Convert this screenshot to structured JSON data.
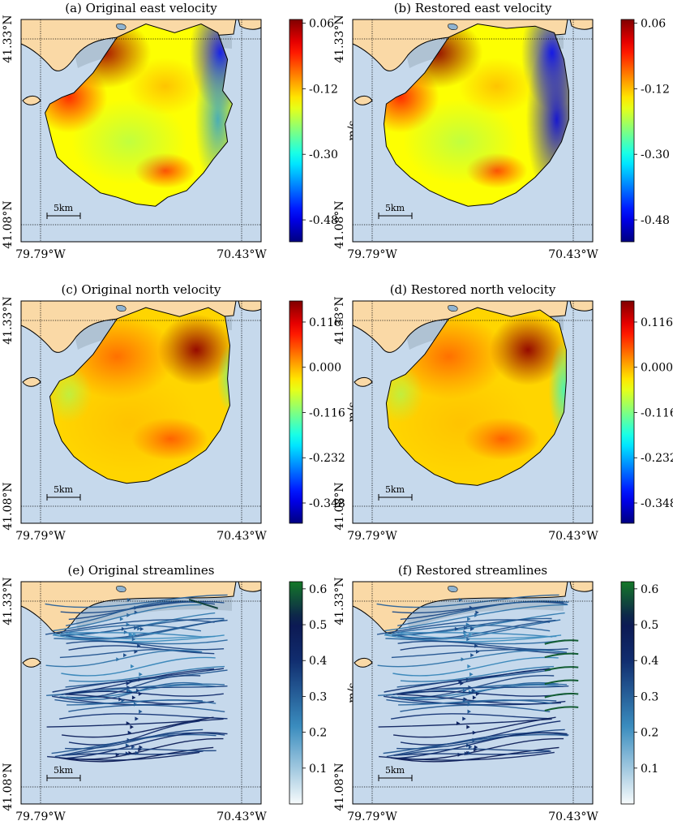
{
  "panels": [
    {
      "id": "a",
      "title": "(a) Original east velocity",
      "kind": "field",
      "field": "east",
      "version": "original"
    },
    {
      "id": "b",
      "title": "(b) Restored east velocity",
      "kind": "field",
      "field": "east",
      "version": "restored"
    },
    {
      "id": "c",
      "title": "(c) Original north velocity",
      "kind": "field",
      "field": "north",
      "version": "original"
    },
    {
      "id": "d",
      "title": "(d) Restored north velocity",
      "kind": "field",
      "field": "north",
      "version": "restored"
    },
    {
      "id": "e",
      "title": "(e) Original streamlines",
      "kind": "stream",
      "version": "original"
    },
    {
      "id": "f",
      "title": "(f) Restored streamlines",
      "kind": "stream",
      "version": "restored"
    }
  ],
  "map": {
    "lat_top_label": "41.33°N",
    "lat_bottom_label": "41.08°N",
    "lon_left_label": "79.79°W",
    "lon_right_label": "70.43°W",
    "scale_label": "5km",
    "ocean_color": "#c6d9ec",
    "land_color": "#fad9a6",
    "shallow_color": "#a9bccd"
  },
  "colorbars": {
    "east": {
      "unit": "m/s",
      "ticks": [
        "0.06",
        "-0.12",
        "-0.30",
        "-0.48"
      ],
      "tick_values": [
        0.06,
        -0.12,
        -0.3,
        -0.48
      ],
      "min": -0.54,
      "max": 0.07,
      "colormap": "jet"
    },
    "north": {
      "unit": "m/s",
      "ticks": [
        "0.116",
        "0.000",
        "-0.116",
        "-0.232",
        "-0.348"
      ],
      "tick_values": [
        0.116,
        0.0,
        -0.116,
        -0.232,
        -0.348
      ],
      "min": -0.4,
      "max": 0.17,
      "colormap": "jet"
    },
    "stream": {
      "unit": "m/s",
      "ticks": [
        "0.6",
        "0.5",
        "0.4",
        "0.3",
        "0.2",
        "0.1"
      ],
      "tick_values": [
        0.6,
        0.5,
        0.4,
        0.3,
        0.2,
        0.1
      ],
      "min": 0.0,
      "max": 0.62,
      "colormap": "white-blue-navy-green"
    }
  },
  "chart_data": [
    {
      "type": "heatmap",
      "title": "(a) Original east velocity",
      "colorbar_label": "m/s",
      "clim": [
        -0.54,
        0.07
      ],
      "colorbar_ticks": [
        0.06,
        -0.12,
        -0.3,
        -0.48
      ],
      "xlabel": "",
      "ylabel": "",
      "x_ticks": [
        "79.79°W",
        "70.43°W"
      ],
      "y_ticks": [
        "41.33°N",
        "41.08°N"
      ]
    },
    {
      "type": "heatmap",
      "title": "(b) Restored east velocity",
      "colorbar_label": "m/s",
      "clim": [
        -0.54,
        0.07
      ],
      "colorbar_ticks": [
        0.06,
        -0.12,
        -0.3,
        -0.48
      ],
      "xlabel": "",
      "ylabel": "",
      "x_ticks": [
        "79.79°W",
        "70.43°W"
      ],
      "y_ticks": [
        "41.33°N",
        "41.08°N"
      ]
    },
    {
      "type": "heatmap",
      "title": "(c) Original north velocity",
      "colorbar_label": "m/s",
      "clim": [
        -0.4,
        0.17
      ],
      "colorbar_ticks": [
        0.116,
        0.0,
        -0.116,
        -0.232,
        -0.348
      ],
      "xlabel": "",
      "ylabel": "",
      "x_ticks": [
        "79.79°W",
        "70.43°W"
      ],
      "y_ticks": [
        "41.33°N",
        "41.08°N"
      ]
    },
    {
      "type": "heatmap",
      "title": "(d) Restored north velocity",
      "colorbar_label": "m/s",
      "clim": [
        -0.4,
        0.17
      ],
      "colorbar_ticks": [
        0.116,
        0.0,
        -0.116,
        -0.232,
        -0.348
      ],
      "xlabel": "",
      "ylabel": "",
      "x_ticks": [
        "79.79°W",
        "70.43°W"
      ],
      "y_ticks": [
        "41.33°N",
        "41.08°N"
      ]
    },
    {
      "type": "streamline",
      "title": "(e) Original streamlines",
      "colorbar_label": "m/s",
      "clim": [
        0.0,
        0.62
      ],
      "colorbar_ticks": [
        0.6,
        0.5,
        0.4,
        0.3,
        0.2,
        0.1
      ],
      "xlabel": "",
      "ylabel": "",
      "x_ticks": [
        "79.79°W",
        "70.43°W"
      ],
      "y_ticks": [
        "41.33°N",
        "41.08°N"
      ]
    },
    {
      "type": "streamline",
      "title": "(f) Restored streamlines",
      "colorbar_label": "m/s",
      "clim": [
        0.0,
        0.62
      ],
      "colorbar_ticks": [
        0.6,
        0.5,
        0.4,
        0.3,
        0.2,
        0.1
      ],
      "xlabel": "",
      "ylabel": "",
      "x_ticks": [
        "79.79°W",
        "70.43°W"
      ],
      "y_ticks": [
        "41.33°N",
        "41.08°N"
      ]
    }
  ]
}
